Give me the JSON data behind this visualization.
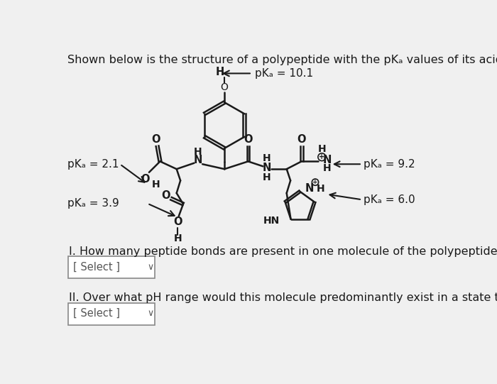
{
  "bg_color": "#f0f0f0",
  "title_text": "Shown below is the structure of a polypeptide with the pKₐ values of its acidic hydrogens.",
  "title_fontsize": 11.5,
  "font_color": "#1a1a1a",
  "question1": "I. How many peptide bonds are present in one molecule of the polypeptide?",
  "question2": "II. Over what pH range would this molecule predominantly exist in a state that has a net charge of zero?",
  "select_box_text": "[ Select ]"
}
